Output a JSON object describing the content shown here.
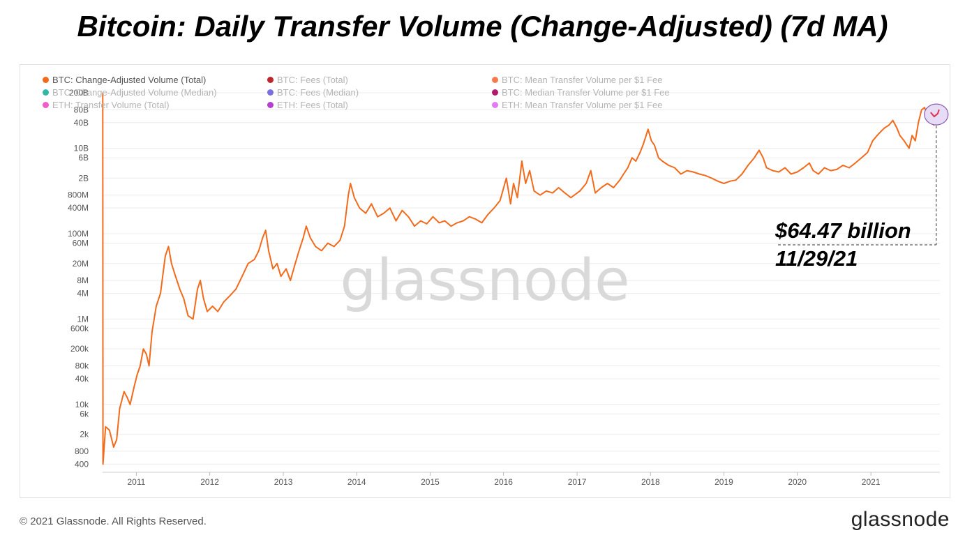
{
  "title": "Bitcoin: Daily Transfer Volume (Change-Adjusted) (7d MA)",
  "legend": [
    {
      "label": "BTC: Change-Adjusted Volume (Total)",
      "color": "#f26a1b",
      "active": true
    },
    {
      "label": "BTC: Fees (Total)",
      "color": "#c0262d",
      "active": false
    },
    {
      "label": "BTC: Mean Transfer Volume per $1 Fee",
      "color": "#f47b4d",
      "active": false
    },
    {
      "label": "BTC: Change-Adjusted Volume (Median)",
      "color": "#2fb8a8",
      "active": false
    },
    {
      "label": "BTC: Fees (Median)",
      "color": "#7b6fe0",
      "active": false
    },
    {
      "label": "BTC: Median Transfer Volume per $1 Fee",
      "color": "#b01b6b",
      "active": false
    },
    {
      "label": "ETH: Transfer Volume (Total)",
      "color": "#f05cc9",
      "active": false
    },
    {
      "label": "ETH: Fees (Total)",
      "color": "#b43fd1",
      "active": false
    },
    {
      "label": "ETH: Mean Transfer Volume per $1 Fee",
      "color": "#e07cf0",
      "active": false
    }
  ],
  "annotation": {
    "value": "$64.47 billion",
    "date": "11/29/21"
  },
  "watermark": "glassnode",
  "footer": {
    "copyright": "© 2021 Glassnode. All Rights Reserved.",
    "brand": "glassnode"
  },
  "colors": {
    "series": "#f26a1b",
    "highlight_fill": "#e6dcf5",
    "highlight_stroke": "#8a5ab0",
    "highlight_line": "#e0304a"
  },
  "chart_data": {
    "type": "line",
    "title": "Bitcoin: Daily Transfer Volume (Change-Adjusted) (7d MA)",
    "xlabel": "",
    "ylabel": "",
    "yscale": "log",
    "ylim": [
      300,
      200000000000
    ],
    "xlim": [
      "2010-07-17",
      "2021-12-10"
    ],
    "x_ticks": [
      "2011",
      "2012",
      "2013",
      "2014",
      "2015",
      "2016",
      "2017",
      "2018",
      "2019",
      "2020",
      "2021"
    ],
    "y_ticks": [
      {
        "label": "400",
        "value": 400
      },
      {
        "label": "800",
        "value": 800
      },
      {
        "label": "2k",
        "value": 2000
      },
      {
        "label": "6k",
        "value": 6000
      },
      {
        "label": "10k",
        "value": 10000
      },
      {
        "label": "40k",
        "value": 40000
      },
      {
        "label": "80k",
        "value": 80000
      },
      {
        "label": "200k",
        "value": 200000
      },
      {
        "label": "600k",
        "value": 600000
      },
      {
        "label": "1M",
        "value": 1000000
      },
      {
        "label": "4M",
        "value": 4000000
      },
      {
        "label": "8M",
        "value": 8000000
      },
      {
        "label": "20M",
        "value": 20000000
      },
      {
        "label": "60M",
        "value": 60000000
      },
      {
        "label": "100M",
        "value": 100000000
      },
      {
        "label": "400M",
        "value": 400000000
      },
      {
        "label": "800M",
        "value": 800000000
      },
      {
        "label": "2B",
        "value": 2000000000
      },
      {
        "label": "6B",
        "value": 6000000000
      },
      {
        "label": "10B",
        "value": 10000000000
      },
      {
        "label": "40B",
        "value": 40000000000
      },
      {
        "label": "80B",
        "value": 80000000000
      },
      {
        "label": "200B",
        "value": 200000000000
      }
    ],
    "series": [
      {
        "name": "BTC: Change-Adjusted Volume (Total)",
        "points": [
          [
            "2010-07-18",
            200000000000
          ],
          [
            "2010-07-19",
            400
          ],
          [
            "2010-08-01",
            3000
          ],
          [
            "2010-08-20",
            2500
          ],
          [
            "2010-09-10",
            1000
          ],
          [
            "2010-09-25",
            1500
          ],
          [
            "2010-10-10",
            8000
          ],
          [
            "2010-11-01",
            20000
          ],
          [
            "2010-11-15",
            15000
          ],
          [
            "2010-12-01",
            10000
          ],
          [
            "2010-12-20",
            25000
          ],
          [
            "2011-01-05",
            50000
          ],
          [
            "2011-01-20",
            80000
          ],
          [
            "2011-02-05",
            200000
          ],
          [
            "2011-02-20",
            150000
          ],
          [
            "2011-03-05",
            80000
          ],
          [
            "2011-03-20",
            500000
          ],
          [
            "2011-04-10",
            2000000
          ],
          [
            "2011-05-01",
            4000000
          ],
          [
            "2011-05-25",
            30000000
          ],
          [
            "2011-06-10",
            50000000
          ],
          [
            "2011-06-25",
            20000000
          ],
          [
            "2011-07-15",
            10000000
          ],
          [
            "2011-08-05",
            5000000
          ],
          [
            "2011-08-25",
            3000000
          ],
          [
            "2011-09-15",
            1200000
          ],
          [
            "2011-10-10",
            1000000
          ],
          [
            "2011-11-01",
            5000000
          ],
          [
            "2011-11-15",
            8000000
          ],
          [
            "2011-12-01",
            3000000
          ],
          [
            "2011-12-20",
            1500000
          ],
          [
            "2012-01-15",
            2000000
          ],
          [
            "2012-02-10",
            1500000
          ],
          [
            "2012-03-10",
            2500000
          ],
          [
            "2012-04-10",
            3500000
          ],
          [
            "2012-05-10",
            5000000
          ],
          [
            "2012-06-10",
            10000000
          ],
          [
            "2012-07-10",
            20000000
          ],
          [
            "2012-08-10",
            25000000
          ],
          [
            "2012-09-01",
            40000000
          ],
          [
            "2012-09-20",
            80000000
          ],
          [
            "2012-10-05",
            120000000
          ],
          [
            "2012-10-20",
            40000000
          ],
          [
            "2012-11-10",
            15000000
          ],
          [
            "2012-12-01",
            20000000
          ],
          [
            "2012-12-20",
            10000000
          ],
          [
            "2013-01-15",
            15000000
          ],
          [
            "2013-02-05",
            8000000
          ],
          [
            "2013-03-01",
            20000000
          ],
          [
            "2013-03-20",
            40000000
          ],
          [
            "2013-04-10",
            80000000
          ],
          [
            "2013-04-25",
            150000000
          ],
          [
            "2013-05-15",
            80000000
          ],
          [
            "2013-06-10",
            50000000
          ],
          [
            "2013-07-10",
            40000000
          ],
          [
            "2013-08-10",
            60000000
          ],
          [
            "2013-09-10",
            50000000
          ],
          [
            "2013-10-10",
            70000000
          ],
          [
            "2013-11-01",
            150000000
          ],
          [
            "2013-11-20",
            800000000
          ],
          [
            "2013-12-01",
            1500000000
          ],
          [
            "2013-12-20",
            700000000
          ],
          [
            "2014-01-15",
            400000000
          ],
          [
            "2014-02-15",
            300000000
          ],
          [
            "2014-03-15",
            500000000
          ],
          [
            "2014-04-15",
            250000000
          ],
          [
            "2014-05-15",
            300000000
          ],
          [
            "2014-06-15",
            400000000
          ],
          [
            "2014-07-15",
            200000000
          ],
          [
            "2014-08-15",
            350000000
          ],
          [
            "2014-09-15",
            250000000
          ],
          [
            "2014-10-15",
            150000000
          ],
          [
            "2014-11-15",
            200000000
          ],
          [
            "2014-12-15",
            170000000
          ],
          [
            "2015-01-15",
            250000000
          ],
          [
            "2015-02-15",
            180000000
          ],
          [
            "2015-03-15",
            200000000
          ],
          [
            "2015-04-15",
            150000000
          ],
          [
            "2015-05-15",
            180000000
          ],
          [
            "2015-06-15",
            200000000
          ],
          [
            "2015-07-15",
            250000000
          ],
          [
            "2015-08-15",
            220000000
          ],
          [
            "2015-09-15",
            180000000
          ],
          [
            "2015-10-15",
            280000000
          ],
          [
            "2015-11-15",
            400000000
          ],
          [
            "2015-12-15",
            600000000
          ],
          [
            "2016-01-15",
            2000000000
          ],
          [
            "2016-02-05",
            500000000
          ],
          [
            "2016-02-20",
            1500000000
          ],
          [
            "2016-03-10",
            700000000
          ],
          [
            "2016-04-01",
            5000000000
          ],
          [
            "2016-04-20",
            1500000000
          ],
          [
            "2016-05-10",
            3000000000
          ],
          [
            "2016-06-01",
            1000000000
          ],
          [
            "2016-07-01",
            800000000
          ],
          [
            "2016-08-01",
            1000000000
          ],
          [
            "2016-09-01",
            900000000
          ],
          [
            "2016-10-01",
            1200000000
          ],
          [
            "2016-11-01",
            900000000
          ],
          [
            "2016-12-01",
            700000000
          ],
          [
            "2017-01-15",
            1000000000
          ],
          [
            "2017-02-15",
            1500000000
          ],
          [
            "2017-03-10",
            3000000000
          ],
          [
            "2017-04-01",
            900000000
          ],
          [
            "2017-05-01",
            1200000000
          ],
          [
            "2017-06-01",
            1500000000
          ],
          [
            "2017-07-01",
            1200000000
          ],
          [
            "2017-08-01",
            1800000000
          ],
          [
            "2017-08-20",
            2500000000
          ],
          [
            "2017-09-10",
            3500000000
          ],
          [
            "2017-10-01",
            6000000000
          ],
          [
            "2017-10-20",
            5000000000
          ],
          [
            "2017-11-10",
            8000000000
          ],
          [
            "2017-11-25",
            12000000000
          ],
          [
            "2017-12-10",
            20000000000
          ],
          [
            "2017-12-20",
            28000000000
          ],
          [
            "2018-01-05",
            15000000000
          ],
          [
            "2018-01-20",
            12000000000
          ],
          [
            "2018-02-10",
            6000000000
          ],
          [
            "2018-03-01",
            5000000000
          ],
          [
            "2018-04-01",
            4000000000
          ],
          [
            "2018-05-01",
            3500000000
          ],
          [
            "2018-06-01",
            2500000000
          ],
          [
            "2018-07-01",
            3000000000
          ],
          [
            "2018-08-01",
            2800000000
          ],
          [
            "2018-09-01",
            2500000000
          ],
          [
            "2018-10-01",
            2300000000
          ],
          [
            "2018-11-01",
            2000000000
          ],
          [
            "2018-12-01",
            1700000000
          ],
          [
            "2019-01-01",
            1500000000
          ],
          [
            "2019-02-01",
            1700000000
          ],
          [
            "2019-03-01",
            1800000000
          ],
          [
            "2019-04-01",
            2500000000
          ],
          [
            "2019-05-01",
            4000000000
          ],
          [
            "2019-06-01",
            6000000000
          ],
          [
            "2019-06-25",
            9000000000
          ],
          [
            "2019-07-15",
            6000000000
          ],
          [
            "2019-08-01",
            3500000000
          ],
          [
            "2019-09-01",
            3000000000
          ],
          [
            "2019-10-01",
            2800000000
          ],
          [
            "2019-11-01",
            3500000000
          ],
          [
            "2019-12-01",
            2500000000
          ],
          [
            "2020-01-01",
            2800000000
          ],
          [
            "2020-02-01",
            3500000000
          ],
          [
            "2020-03-01",
            4500000000
          ],
          [
            "2020-03-20",
            3000000000
          ],
          [
            "2020-04-15",
            2500000000
          ],
          [
            "2020-05-15",
            3500000000
          ],
          [
            "2020-06-15",
            3000000000
          ],
          [
            "2020-07-15",
            3200000000
          ],
          [
            "2020-08-15",
            4000000000
          ],
          [
            "2020-09-15",
            3500000000
          ],
          [
            "2020-10-15",
            4500000000
          ],
          [
            "2020-11-15",
            6000000000
          ],
          [
            "2020-12-15",
            8000000000
          ],
          [
            "2021-01-10",
            15000000000
          ],
          [
            "2021-02-01",
            20000000000
          ],
          [
            "2021-02-20",
            25000000000
          ],
          [
            "2021-03-10",
            30000000000
          ],
          [
            "2021-04-01",
            35000000000
          ],
          [
            "2021-04-20",
            45000000000
          ],
          [
            "2021-05-10",
            30000000000
          ],
          [
            "2021-05-25",
            20000000000
          ],
          [
            "2021-06-15",
            15000000000
          ],
          [
            "2021-07-10",
            10000000000
          ],
          [
            "2021-07-25",
            20000000000
          ],
          [
            "2021-08-10",
            15000000000
          ],
          [
            "2021-08-25",
            40000000000
          ],
          [
            "2021-09-10",
            80000000000
          ],
          [
            "2021-09-25",
            90000000000
          ],
          [
            "2021-10-10",
            60000000000
          ],
          [
            "2021-10-25",
            45000000000
          ],
          [
            "2021-11-10",
            35000000000
          ],
          [
            "2021-11-29",
            64470000000
          ]
        ]
      }
    ]
  }
}
